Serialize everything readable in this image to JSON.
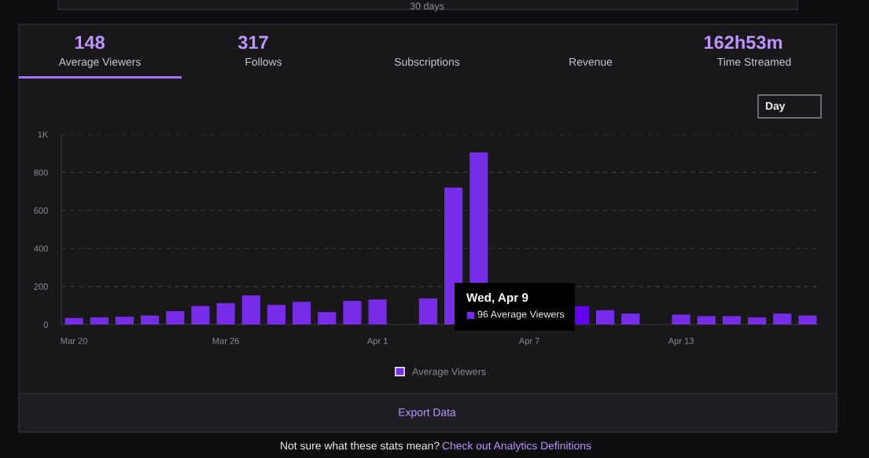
{
  "chart_data": {
    "type": "bar",
    "categories": [
      "Mar 20",
      null,
      null,
      null,
      null,
      null,
      "Mar 26",
      null,
      null,
      null,
      null,
      null,
      "Apr 1",
      null,
      null,
      null,
      null,
      null,
      "Apr 7",
      null,
      null,
      null,
      null,
      null,
      "Apr 13",
      null,
      null,
      null,
      null,
      null
    ],
    "series": [
      {
        "name": "Average Viewers",
        "color": "#772ce8",
        "values": [
          34,
          37,
          41,
          47,
          70,
          97,
          112,
          153,
          103,
          119,
          65,
          124,
          131,
          null,
          137,
          720,
          905,
          null,
          null,
          null,
          96,
          75,
          57,
          null,
          52,
          44,
          44,
          37,
          57,
          47
        ],
        "colors": [
          "#772ce8",
          "#772ce8",
          "#772ce8",
          "#772ce8",
          "#772ce8",
          "#772ce8",
          "#772ce8",
          "#772ce8",
          "#772ce8",
          "#772ce8",
          "#772ce8",
          "#772ce8",
          "#772ce8",
          "#772ce8",
          "#772ce8",
          "#772ce8",
          "#772ce8",
          "#772ce8",
          "#772ce8",
          "#772ce8",
          "#6200f0",
          "#772ce8",
          "#772ce8",
          "#772ce8",
          "#772ce8",
          "#772ce8",
          "#772ce8",
          "#772ce8",
          "#772ce8",
          "#772ce8"
        ]
      }
    ],
    "ylim": [
      0,
      1000
    ],
    "yticks": [
      0,
      200,
      400,
      600,
      800,
      {
        "value": 1000,
        "label": "1K"
      }
    ],
    "grid": "y",
    "legend": "bottom",
    "annotations": [
      "30 days",
      "148",
      "Average Viewers",
      "317",
      "Follows",
      "Subscriptions",
      "Revenue",
      "162h53m",
      "Time Streamed",
      "Day",
      "Wed, Apr 9",
      "96 Average Viewers",
      "Export Data",
      "Not sure what these stats mean?",
      "Check out Analytics Definitions"
    ]
  }
}
